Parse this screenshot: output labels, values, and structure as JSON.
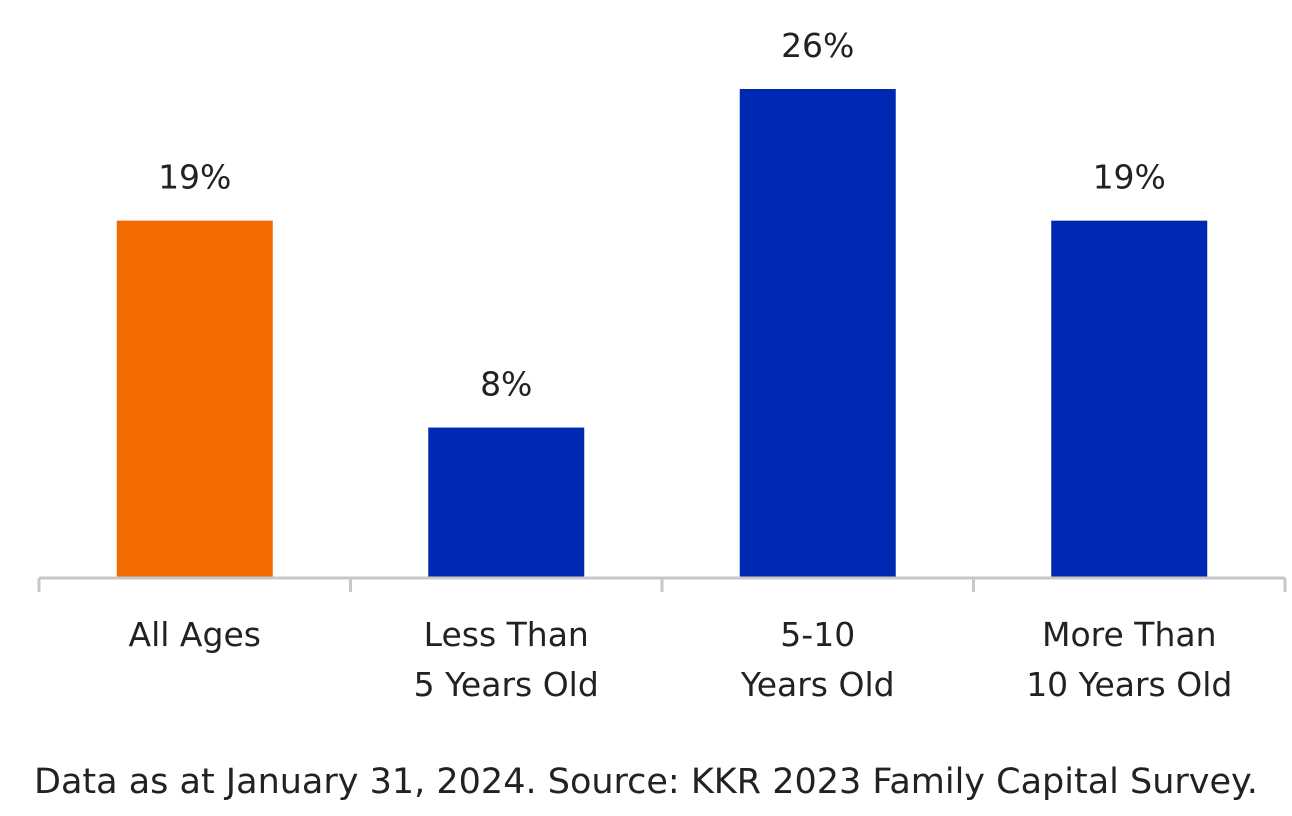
{
  "chart_data": {
    "type": "bar",
    "categories": [
      [
        "All Ages"
      ],
      [
        "Less Than",
        "5 Years Old"
      ],
      [
        "5-10",
        "Years Old"
      ],
      [
        "More Than",
        "10 Years Old"
      ]
    ],
    "values": [
      19,
      8,
      26,
      19
    ],
    "value_labels": [
      "19%",
      "8%",
      "26%",
      "19%"
    ],
    "unit": "%",
    "bar_colors": [
      "#F26A00",
      "#0029B3",
      "#0029B3",
      "#0029B3"
    ],
    "ylim": [
      0,
      26
    ],
    "grid": false,
    "axis_color": "#C8C8C8"
  },
  "footnote": "Data as at January 31, 2024. Source: KKR 2023 Family Capital Survey."
}
